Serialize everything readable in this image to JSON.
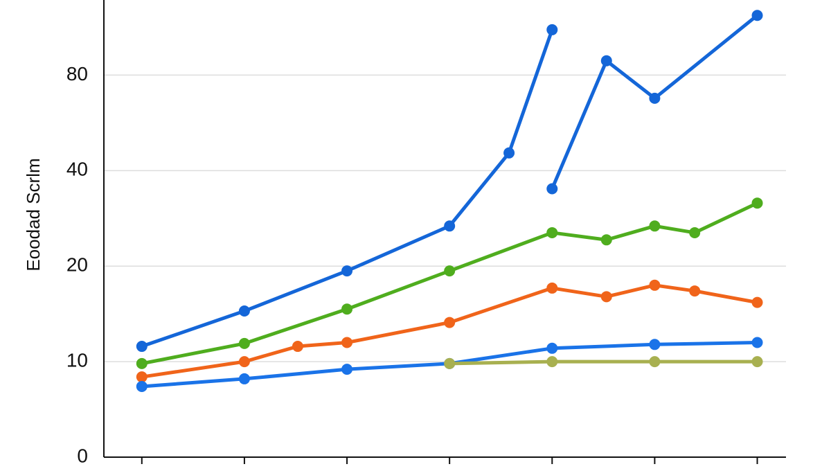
{
  "chart_data": {
    "type": "line",
    "y_label": "Eoodad Scrlm",
    "y_scale": "tick-spaced",
    "ylim": [
      0,
      110
    ],
    "yticks": [
      0,
      10,
      20,
      40,
      80
    ],
    "xlim": [
      -0.37,
      6.28
    ],
    "xticks": [
      0,
      1,
      2,
      3,
      4,
      5,
      6
    ],
    "grid": true,
    "series": [
      {
        "color": "#1466d8",
        "x": [
          0,
          1,
          2,
          3,
          3.58,
          4,
          4,
          4,
          4.53,
          5,
          6
        ],
        "values": [
          11.6,
          15.3,
          19.5,
          28.4,
          47.4,
          99,
          null,
          36.2,
          86,
          70.3,
          105
        ]
      },
      {
        "color": "#4fad1e",
        "x": [
          0,
          1,
          2,
          3,
          4,
          4.53,
          5,
          5.39,
          6
        ],
        "values": [
          9.8,
          11.9,
          15.5,
          19.5,
          27,
          25.5,
          28.4,
          27,
          33.2
        ]
      },
      {
        "color": "#f0641a",
        "x": [
          0,
          1,
          1.52,
          2,
          3,
          4,
          4.53,
          5,
          5.39,
          6
        ],
        "values": [
          8.4,
          10,
          11.6,
          12,
          14.1,
          17.7,
          16.8,
          18,
          17.4,
          16.2
        ]
      },
      {
        "color": "#1a73e8",
        "x": [
          0,
          1,
          2,
          3,
          4,
          5,
          6
        ],
        "values": [
          7.4,
          8.2,
          9.2,
          9.8,
          11.4,
          11.8,
          12.0
        ]
      },
      {
        "color": "#a8b050",
        "x": [
          3,
          4,
          5,
          6
        ],
        "values": [
          9.8,
          10,
          10,
          10
        ]
      }
    ]
  }
}
